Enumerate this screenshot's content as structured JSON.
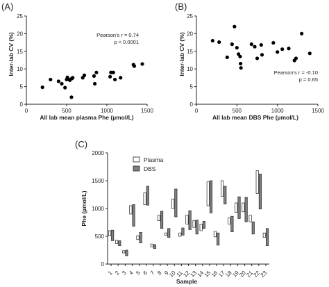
{
  "chart_data": [
    {
      "type": "scatter",
      "panel_label": "(A)",
      "xlabel": "All lab mean plasma Phe (µmol/L)",
      "ylabel": "Inter-lab CV (%)",
      "xlim": [
        0,
        1500
      ],
      "ylim": [
        0,
        25
      ],
      "xticks": [
        0,
        500,
        1000,
        1500
      ],
      "yticks": [
        0,
        5,
        10,
        15,
        20,
        25
      ],
      "annotation": [
        "Pearson's r = 0.74",
        "p < 0.0001"
      ],
      "annotation_position": "upper-right",
      "points": [
        {
          "x": 200,
          "y": 4.8
        },
        {
          "x": 300,
          "y": 7.0
        },
        {
          "x": 400,
          "y": 6.5
        },
        {
          "x": 440,
          "y": 5.8
        },
        {
          "x": 480,
          "y": 4.7
        },
        {
          "x": 500,
          "y": 7.0
        },
        {
          "x": 510,
          "y": 7.6
        },
        {
          "x": 530,
          "y": 7.0
        },
        {
          "x": 540,
          "y": 6.8
        },
        {
          "x": 560,
          "y": 2.0
        },
        {
          "x": 565,
          "y": 7.3
        },
        {
          "x": 575,
          "y": 7.5
        },
        {
          "x": 700,
          "y": 7.5
        },
        {
          "x": 720,
          "y": 8.2
        },
        {
          "x": 840,
          "y": 8.0
        },
        {
          "x": 850,
          "y": 5.8
        },
        {
          "x": 870,
          "y": 9.0
        },
        {
          "x": 1040,
          "y": 7.8
        },
        {
          "x": 1050,
          "y": 9.0
        },
        {
          "x": 1080,
          "y": 9.0
        },
        {
          "x": 1100,
          "y": 7.0
        },
        {
          "x": 1170,
          "y": 7.5
        },
        {
          "x": 1330,
          "y": 11.2
        },
        {
          "x": 1340,
          "y": 10.8
        },
        {
          "x": 1440,
          "y": 11.4
        }
      ]
    },
    {
      "type": "scatter",
      "panel_label": "(B)",
      "xlabel": "All lab mean DBS Phe (µmol/L)",
      "ylabel": "Inter-lab CV (%)",
      "xlim": [
        0,
        1500
      ],
      "ylim": [
        0,
        25
      ],
      "xticks": [
        0,
        500,
        1000,
        1500
      ],
      "yticks": [
        0,
        5,
        10,
        15,
        20,
        25
      ],
      "annotation": [
        "Pearson's r = -0.10",
        "p = 0.65"
      ],
      "annotation_position": "lower-right",
      "points": [
        {
          "x": 200,
          "y": 18.0
        },
        {
          "x": 280,
          "y": 17.6
        },
        {
          "x": 380,
          "y": 13.3
        },
        {
          "x": 440,
          "y": 17.0
        },
        {
          "x": 470,
          "y": 22.0
        },
        {
          "x": 500,
          "y": 16.0
        },
        {
          "x": 520,
          "y": 14.2
        },
        {
          "x": 540,
          "y": 13.5
        },
        {
          "x": 545,
          "y": 11.5
        },
        {
          "x": 550,
          "y": 10.3
        },
        {
          "x": 680,
          "y": 17.0
        },
        {
          "x": 720,
          "y": 16.3
        },
        {
          "x": 750,
          "y": 13.0
        },
        {
          "x": 800,
          "y": 16.8
        },
        {
          "x": 810,
          "y": 14.0
        },
        {
          "x": 950,
          "y": 17.4
        },
        {
          "x": 1000,
          "y": 14.8
        },
        {
          "x": 1060,
          "y": 15.6
        },
        {
          "x": 1140,
          "y": 15.8
        },
        {
          "x": 1210,
          "y": 12.4
        },
        {
          "x": 1230,
          "y": 13.0
        },
        {
          "x": 1300,
          "y": 20.0
        },
        {
          "x": 1400,
          "y": 14.4
        }
      ]
    },
    {
      "type": "range-bar",
      "panel_label": "(C)",
      "xlabel": "Sample",
      "ylabel": "Phe (µmol/L)",
      "ylim": [
        0,
        2000
      ],
      "yticks": [
        0,
        500,
        1000,
        1500,
        2000
      ],
      "categories": [
        "1",
        "2",
        "3",
        "4",
        "5",
        "6",
        "7",
        "8",
        "9",
        "10",
        "11",
        "12",
        "13",
        "14",
        "15",
        "16",
        "17",
        "18",
        "19",
        "20",
        "21",
        "22",
        "23"
      ],
      "legend_position": "top-left",
      "series": [
        {
          "name": "Plasma",
          "color": "#ffffff",
          "ranges": [
            [
              510,
              600
            ],
            [
              370,
              430
            ],
            [
              200,
              240
            ],
            [
              900,
              1050
            ],
            [
              440,
              510
            ],
            [
              1070,
              1280
            ],
            [
              310,
              360
            ],
            [
              780,
              880
            ],
            [
              520,
              560
            ],
            [
              1000,
              1170
            ],
            [
              500,
              560
            ],
            [
              720,
              880
            ],
            [
              660,
              780
            ],
            [
              600,
              720
            ],
            [
              1050,
              1480
            ],
            [
              490,
              590
            ],
            [
              1220,
              1500
            ],
            [
              720,
              830
            ],
            [
              930,
              1100
            ],
            [
              940,
              1100
            ],
            [
              760,
              880
            ],
            [
              1270,
              1680
            ],
            [
              480,
              560
            ]
          ]
        },
        {
          "name": "DBS",
          "color": "#808080",
          "ranges": [
            [
              420,
              610
            ],
            [
              330,
              420
            ],
            [
              150,
              250
            ],
            [
              680,
              1070
            ],
            [
              380,
              570
            ],
            [
              1060,
              1400
            ],
            [
              280,
              350
            ],
            [
              640,
              950
            ],
            [
              480,
              640
            ],
            [
              850,
              1350
            ],
            [
              520,
              650
            ],
            [
              620,
              960
            ],
            [
              540,
              790
            ],
            [
              640,
              770
            ],
            [
              920,
              1500
            ],
            [
              340,
              560
            ],
            [
              1080,
              1400
            ],
            [
              580,
              860
            ],
            [
              820,
              1210
            ],
            [
              760,
              1200
            ],
            [
              540,
              760
            ],
            [
              990,
              1620
            ],
            [
              330,
              640
            ]
          ]
        }
      ]
    }
  ]
}
